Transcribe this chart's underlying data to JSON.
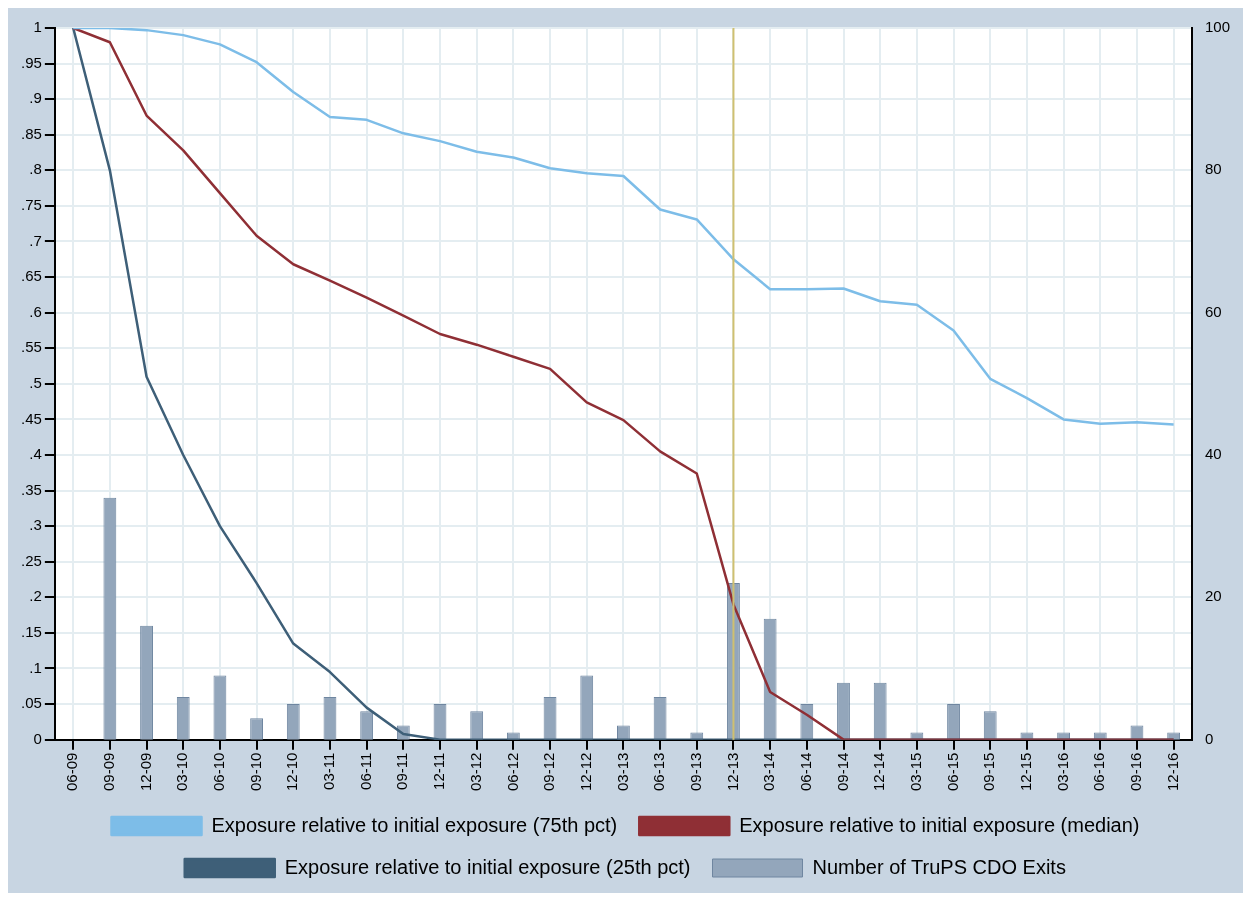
{
  "chart_data": {
    "type": "line",
    "categories": [
      "06-09",
      "09-09",
      "12-09",
      "03-10",
      "06-10",
      "09-10",
      "12-10",
      "03-11",
      "06-11",
      "09-11",
      "12-11",
      "03-12",
      "06-12",
      "09-12",
      "12-12",
      "03-13",
      "06-13",
      "09-13",
      "12-13",
      "03-14",
      "06-14",
      "09-14",
      "12-14",
      "03-15",
      "06-15",
      "09-15",
      "12-15",
      "03-16",
      "06-16",
      "09-16",
      "12-16"
    ],
    "series": [
      {
        "name": "Exposure relative to initial exposure (25th pct)",
        "color": "#3e5f78",
        "values": [
          1,
          0.8,
          0.51,
          0.4,
          0.3,
          0.22,
          0.135,
          0.095,
          0.045,
          0.008,
          0,
          0,
          0,
          0,
          0,
          0,
          0,
          0,
          0,
          0,
          0,
          0,
          0,
          0,
          0,
          0,
          0,
          0,
          0,
          0,
          0
        ]
      },
      {
        "name": "Exposure relative to initial exposure (median)",
        "color": "#8f2f35",
        "values": [
          1,
          0.98,
          0.877,
          0.828,
          0.768,
          0.708,
          0.668,
          0.645,
          0.621,
          0.596,
          0.57,
          0.555,
          0.538,
          0.521,
          0.474,
          0.449,
          0.405,
          0.374,
          0.19,
          0.067,
          0.035,
          0,
          0,
          0,
          0,
          0,
          0,
          0,
          0,
          0,
          0
        ]
      },
      {
        "name": "Exposure relative to initial exposure (75th pct)",
        "color": "#7dbde8",
        "values": [
          1,
          1,
          0.997,
          0.99,
          0.977,
          0.952,
          0.91,
          0.875,
          0.871,
          0.852,
          0.841,
          0.826,
          0.818,
          0.803,
          0.796,
          0.792,
          0.745,
          0.731,
          0.675,
          0.633,
          0.633,
          0.634,
          0.616,
          0.611,
          0.575,
          0.507,
          0.48,
          0.45,
          0.444,
          0.446,
          0.443
        ]
      },
      {
        "name": "Number of TruPS CDO Exits",
        "type": "bar",
        "axis": "y2",
        "color": "#93a6bb",
        "values": [
          null,
          34,
          16,
          6,
          9,
          3,
          5,
          6,
          4,
          2,
          5,
          4,
          1,
          6,
          9,
          2,
          6,
          1,
          22,
          17,
          5,
          8,
          8,
          1,
          5,
          4,
          1,
          1,
          1,
          2,
          1
        ]
      }
    ],
    "ylim": [
      0,
      1
    ],
    "yticks": [
      {
        "value": 0,
        "label": "0"
      },
      {
        "value": 0.05,
        "label": ".05"
      },
      {
        "value": 0.1,
        "label": ".1"
      },
      {
        "value": 0.15,
        "label": ".15"
      },
      {
        "value": 0.2,
        "label": ".2"
      },
      {
        "value": 0.25,
        "label": ".25"
      },
      {
        "value": 0.3,
        "label": ".3"
      },
      {
        "value": 0.35,
        "label": ".35"
      },
      {
        "value": 0.4,
        "label": ".4"
      },
      {
        "value": 0.45,
        "label": ".45"
      },
      {
        "value": 0.5,
        "label": ".5"
      },
      {
        "value": 0.55,
        "label": ".55"
      },
      {
        "value": 0.6,
        "label": ".6"
      },
      {
        "value": 0.65,
        "label": ".65"
      },
      {
        "value": 0.7,
        "label": ".7"
      },
      {
        "value": 0.75,
        "label": ".75"
      },
      {
        "value": 0.8,
        "label": ".8"
      },
      {
        "value": 0.85,
        "label": ".85"
      },
      {
        "value": 0.9,
        "label": ".9"
      },
      {
        "value": 0.95,
        "label": ".95"
      },
      {
        "value": 1,
        "label": "1"
      }
    ],
    "y2lim": [
      0,
      100
    ],
    "y2ticks": [
      0,
      20,
      40,
      60,
      80,
      100
    ],
    "ref_lines": [
      {
        "axis": "x",
        "value": "12-13",
        "color": "#cfc070"
      }
    ],
    "grid": true,
    "legend": "bottom",
    "marker": "none"
  }
}
